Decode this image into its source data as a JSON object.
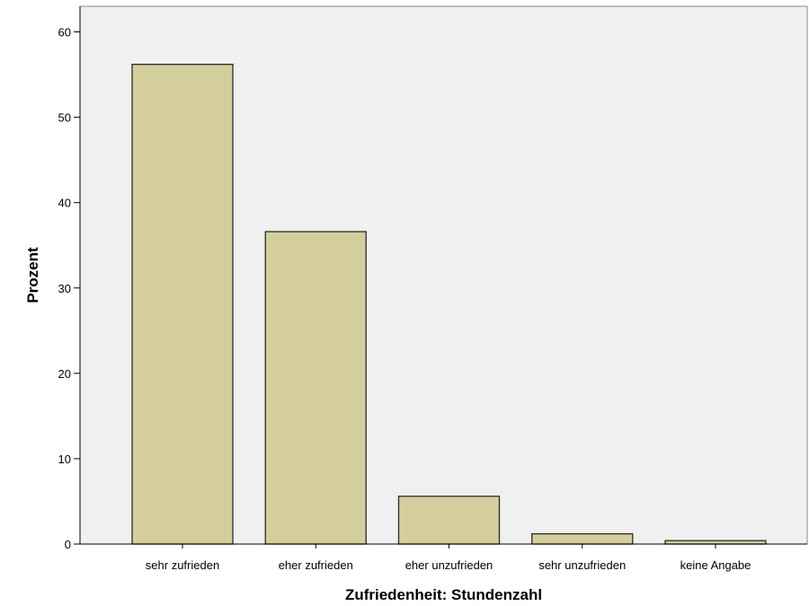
{
  "chart_data": {
    "type": "bar",
    "title": "",
    "xlabel": "Zufriedenheit: Stundenzahl",
    "ylabel": "Prozent",
    "categories": [
      "sehr zufrieden",
      "eher zufrieden",
      "eher unzufrieden",
      "sehr unzufrieden",
      "keine Angabe"
    ],
    "values": [
      56.2,
      36.6,
      5.6,
      1.2,
      0.4
    ],
    "ylim": [
      0,
      63
    ],
    "yticks": [
      "0",
      "10",
      "20",
      "30",
      "40",
      "50",
      "60"
    ],
    "grid": false,
    "legend": "none",
    "colors": {
      "plot_background": "#f0f0f0",
      "bar_fill": "#d3ce9c",
      "bar_stroke": "#2b2b2b",
      "axis": "#000000"
    }
  }
}
